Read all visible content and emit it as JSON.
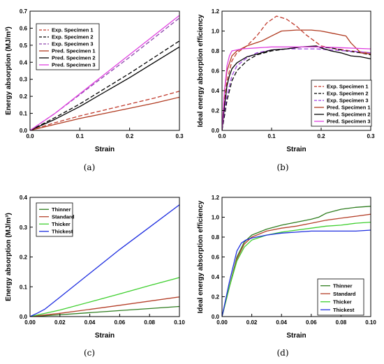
{
  "chart_data": [
    {
      "panel": "a",
      "caption": "(a)",
      "type": "line",
      "xlabel": "Strain",
      "ylabel": "Energy absorption (MJ/m³)",
      "xlim": [
        0,
        0.3
      ],
      "ylim": [
        0,
        0.7
      ],
      "xticks": [
        0.0,
        0.1,
        0.2,
        0.3
      ],
      "xtick_labels": [
        "0.0",
        "0.1",
        "0.2",
        "0.3"
      ],
      "yticks": [
        0,
        0.1,
        0.2,
        0.3,
        0.4,
        0.5,
        0.6,
        0.7
      ],
      "ytick_labels": [
        "0.0",
        "0.1",
        "0.2",
        "0.3",
        "0.4",
        "0.5",
        "0.6",
        "0.7"
      ],
      "legend_position": "top-left",
      "series": [
        {
          "name": "Exp. Specimen 1",
          "color": "#c0392b",
          "dash": true,
          "x": [
            0,
            0.05,
            0.1,
            0.15,
            0.2,
            0.25,
            0.3
          ],
          "y": [
            0,
            0.045,
            0.085,
            0.12,
            0.155,
            0.19,
            0.23
          ]
        },
        {
          "name": "Exp. Specimen 2",
          "color": "#000000",
          "dash": true,
          "x": [
            0,
            0.05,
            0.1,
            0.15,
            0.2,
            0.25,
            0.3
          ],
          "y": [
            0,
            0.075,
            0.155,
            0.245,
            0.335,
            0.43,
            0.525
          ]
        },
        {
          "name": "Exp. Specimen 3",
          "color": "#8e44ad",
          "dash": true,
          "x": [
            0,
            0.05,
            0.1,
            0.15,
            0.2,
            0.25,
            0.3
          ],
          "y": [
            0,
            0.1,
            0.21,
            0.32,
            0.43,
            0.545,
            0.66
          ]
        },
        {
          "name": "Pred. Specimen 1",
          "color": "#b03a20",
          "dash": false,
          "x": [
            0,
            0.05,
            0.1,
            0.15,
            0.2,
            0.25,
            0.3
          ],
          "y": [
            0,
            0.035,
            0.07,
            0.1,
            0.13,
            0.16,
            0.195
          ]
        },
        {
          "name": "Pred. Specimen 2",
          "color": "#000000",
          "dash": false,
          "x": [
            0,
            0.05,
            0.1,
            0.15,
            0.2,
            0.25,
            0.3
          ],
          "y": [
            0,
            0.065,
            0.14,
            0.225,
            0.31,
            0.4,
            0.49
          ]
        },
        {
          "name": "Pred. Specimen 3",
          "color": "#e040e0",
          "dash": false,
          "x": [
            0,
            0.05,
            0.1,
            0.15,
            0.2,
            0.25,
            0.3
          ],
          "y": [
            0,
            0.1,
            0.215,
            0.33,
            0.445,
            0.56,
            0.675
          ]
        }
      ]
    },
    {
      "panel": "b",
      "caption": "(b)",
      "type": "line",
      "xlabel": "Strain",
      "ylabel": "Ideal energy absorption efficiency",
      "xlim": [
        0,
        0.3
      ],
      "ylim": [
        0,
        1.2
      ],
      "xticks": [
        0.0,
        0.1,
        0.2,
        0.3
      ],
      "xtick_labels": [
        "0.0",
        "0.1",
        "0.2",
        "0.3"
      ],
      "yticks": [
        0,
        0.2,
        0.4,
        0.6,
        0.8,
        1.0,
        1.2
      ],
      "ytick_labels": [
        "0.0",
        "0.2",
        "0.4",
        "0.6",
        "0.8",
        "1.0",
        "1.2"
      ],
      "legend_position": "bottom-right",
      "series": [
        {
          "name": "Exp. Specimen 1",
          "color": "#c0392b",
          "dash": true,
          "x": [
            0,
            0.005,
            0.01,
            0.02,
            0.03,
            0.05,
            0.07,
            0.09,
            0.11,
            0.13,
            0.15,
            0.17,
            0.2,
            0.23,
            0.26,
            0.3
          ],
          "y": [
            0,
            0.3,
            0.5,
            0.7,
            0.78,
            0.85,
            0.95,
            1.08,
            1.15,
            1.12,
            1.05,
            0.96,
            0.85,
            0.82,
            0.8,
            0.78
          ]
        },
        {
          "name": "Exp. Specimen 2",
          "color": "#000000",
          "dash": true,
          "x": [
            0,
            0.005,
            0.01,
            0.02,
            0.03,
            0.05,
            0.07,
            0.1,
            0.13,
            0.16,
            0.19,
            0.22,
            0.25,
            0.28,
            0.3
          ],
          "y": [
            0,
            0.15,
            0.3,
            0.5,
            0.6,
            0.7,
            0.76,
            0.8,
            0.82,
            0.84,
            0.84,
            0.83,
            0.8,
            0.78,
            0.76
          ]
        },
        {
          "name": "Exp. Specimen 3",
          "color": "#a040e0",
          "dash": true,
          "x": [
            0,
            0.005,
            0.01,
            0.02,
            0.03,
            0.05,
            0.07,
            0.1,
            0.13,
            0.16,
            0.19,
            0.22,
            0.25,
            0.28,
            0.3
          ],
          "y": [
            0,
            0.2,
            0.35,
            0.55,
            0.65,
            0.73,
            0.78,
            0.81,
            0.82,
            0.82,
            0.82,
            0.81,
            0.8,
            0.79,
            0.78
          ]
        },
        {
          "name": "Pred. Specimen 1",
          "color": "#b03a20",
          "dash": false,
          "x": [
            0,
            0.005,
            0.01,
            0.02,
            0.03,
            0.05,
            0.08,
            0.1,
            0.12,
            0.15,
            0.18,
            0.2,
            0.22,
            0.25,
            0.26,
            0.28,
            0.3
          ],
          "y": [
            0,
            0.4,
            0.6,
            0.75,
            0.8,
            0.85,
            0.9,
            0.95,
            1.0,
            1.01,
            1.01,
            1.0,
            0.98,
            0.95,
            0.88,
            0.78,
            0.77
          ]
        },
        {
          "name": "Pred. Specimen 2",
          "color": "#000000",
          "dash": false,
          "x": [
            0,
            0.005,
            0.01,
            0.015,
            0.02,
            0.03,
            0.05,
            0.08,
            0.1,
            0.13,
            0.16,
            0.19,
            0.2,
            0.22,
            0.24,
            0.26,
            0.28,
            0.3
          ],
          "y": [
            0,
            0.25,
            0.45,
            0.55,
            0.62,
            0.68,
            0.74,
            0.78,
            0.81,
            0.82,
            0.84,
            0.85,
            0.83,
            0.8,
            0.78,
            0.75,
            0.74,
            0.72
          ]
        },
        {
          "name": "Pred. Specimen 3",
          "color": "#e040e0",
          "dash": false,
          "x": [
            0,
            0.005,
            0.01,
            0.015,
            0.02,
            0.04,
            0.07,
            0.1,
            0.15,
            0.2,
            0.25,
            0.3
          ],
          "y": [
            0,
            0.4,
            0.65,
            0.75,
            0.8,
            0.82,
            0.83,
            0.84,
            0.84,
            0.84,
            0.83,
            0.82
          ]
        }
      ]
    },
    {
      "panel": "c",
      "caption": "(c)",
      "type": "line",
      "xlabel": "Strain",
      "ylabel": "Energy absorption (MJ/m³)",
      "xlim": [
        0,
        0.1
      ],
      "ylim": [
        0,
        0.4
      ],
      "xticks": [
        0,
        0.02,
        0.04,
        0.06,
        0.08,
        0.1
      ],
      "xtick_labels": [
        "0.00",
        "0.02",
        "0.04",
        "0.06",
        "0.08",
        "0.10"
      ],
      "yticks": [
        0,
        0.1,
        0.2,
        0.3,
        0.4
      ],
      "ytick_labels": [
        "0.0",
        "0.1",
        "0.2",
        "0.3",
        "0.4"
      ],
      "legend_position": "top-left",
      "series": [
        {
          "name": "Thinner",
          "color": "#2e7d1e",
          "dash": false,
          "x": [
            0,
            0.02,
            0.04,
            0.06,
            0.08,
            0.1
          ],
          "y": [
            0,
            0.006,
            0.013,
            0.02,
            0.027,
            0.034
          ]
        },
        {
          "name": "Standard",
          "color": "#b5402a",
          "dash": false,
          "x": [
            0,
            0.02,
            0.04,
            0.06,
            0.08,
            0.1
          ],
          "y": [
            0,
            0.011,
            0.024,
            0.038,
            0.052,
            0.066
          ]
        },
        {
          "name": "Thicker",
          "color": "#3ecf2e",
          "dash": false,
          "x": [
            0,
            0.02,
            0.04,
            0.06,
            0.08,
            0.1
          ],
          "y": [
            0,
            0.022,
            0.049,
            0.076,
            0.104,
            0.131
          ]
        },
        {
          "name": "Thickest",
          "color": "#1e2ee0",
          "dash": false,
          "x": [
            0,
            0.005,
            0.01,
            0.02,
            0.04,
            0.06,
            0.08,
            0.1
          ],
          "y": [
            0,
            0.012,
            0.025,
            0.065,
            0.145,
            0.225,
            0.3,
            0.375
          ]
        }
      ]
    },
    {
      "panel": "d",
      "caption": "(d)",
      "type": "line",
      "xlabel": "Strain",
      "ylabel": "Ideal energy absorption efficiency",
      "xlim": [
        0,
        0.1
      ],
      "ylim": [
        0,
        1.2
      ],
      "xticks": [
        0,
        0.02,
        0.04,
        0.06,
        0.08,
        0.1
      ],
      "xtick_labels": [
        "0.00",
        "0.02",
        "0.04",
        "0.06",
        "0.08",
        "0.10"
      ],
      "yticks": [
        0,
        0.2,
        0.4,
        0.6,
        0.8,
        1.0,
        1.2
      ],
      "ytick_labels": [
        "0.0",
        "0.2",
        "0.4",
        "0.6",
        "0.8",
        "1.0",
        "1.2"
      ],
      "legend_position": "bottom-right",
      "series": [
        {
          "name": "Thinner",
          "color": "#2e7d1e",
          "dash": false,
          "x": [
            0,
            0.005,
            0.01,
            0.015,
            0.02,
            0.03,
            0.04,
            0.05,
            0.06,
            0.065,
            0.07,
            0.08,
            0.09,
            0.1
          ],
          "y": [
            0,
            0.3,
            0.6,
            0.75,
            0.82,
            0.88,
            0.92,
            0.95,
            0.98,
            1.0,
            1.04,
            1.08,
            1.1,
            1.11
          ]
        },
        {
          "name": "Standard",
          "color": "#b5402a",
          "dash": false,
          "x": [
            0,
            0.005,
            0.01,
            0.015,
            0.02,
            0.03,
            0.04,
            0.05,
            0.06,
            0.07,
            0.08,
            0.09,
            0.1
          ],
          "y": [
            0,
            0.3,
            0.58,
            0.73,
            0.8,
            0.86,
            0.89,
            0.91,
            0.94,
            0.97,
            0.99,
            1.01,
            1.03
          ]
        },
        {
          "name": "Thicker",
          "color": "#3ecf2e",
          "dash": false,
          "x": [
            0,
            0.005,
            0.01,
            0.015,
            0.02,
            0.03,
            0.04,
            0.05,
            0.06,
            0.07,
            0.08,
            0.09,
            0.1
          ],
          "y": [
            0,
            0.3,
            0.56,
            0.7,
            0.77,
            0.82,
            0.85,
            0.87,
            0.89,
            0.91,
            0.92,
            0.94,
            0.95
          ]
        },
        {
          "name": "Thickest",
          "color": "#1e2ee0",
          "dash": false,
          "x": [
            0,
            0.005,
            0.01,
            0.013,
            0.016,
            0.02,
            0.03,
            0.04,
            0.05,
            0.06,
            0.07,
            0.08,
            0.09,
            0.1
          ],
          "y": [
            0,
            0.35,
            0.66,
            0.74,
            0.77,
            0.79,
            0.82,
            0.84,
            0.85,
            0.86,
            0.86,
            0.86,
            0.86,
            0.87
          ]
        }
      ]
    }
  ]
}
